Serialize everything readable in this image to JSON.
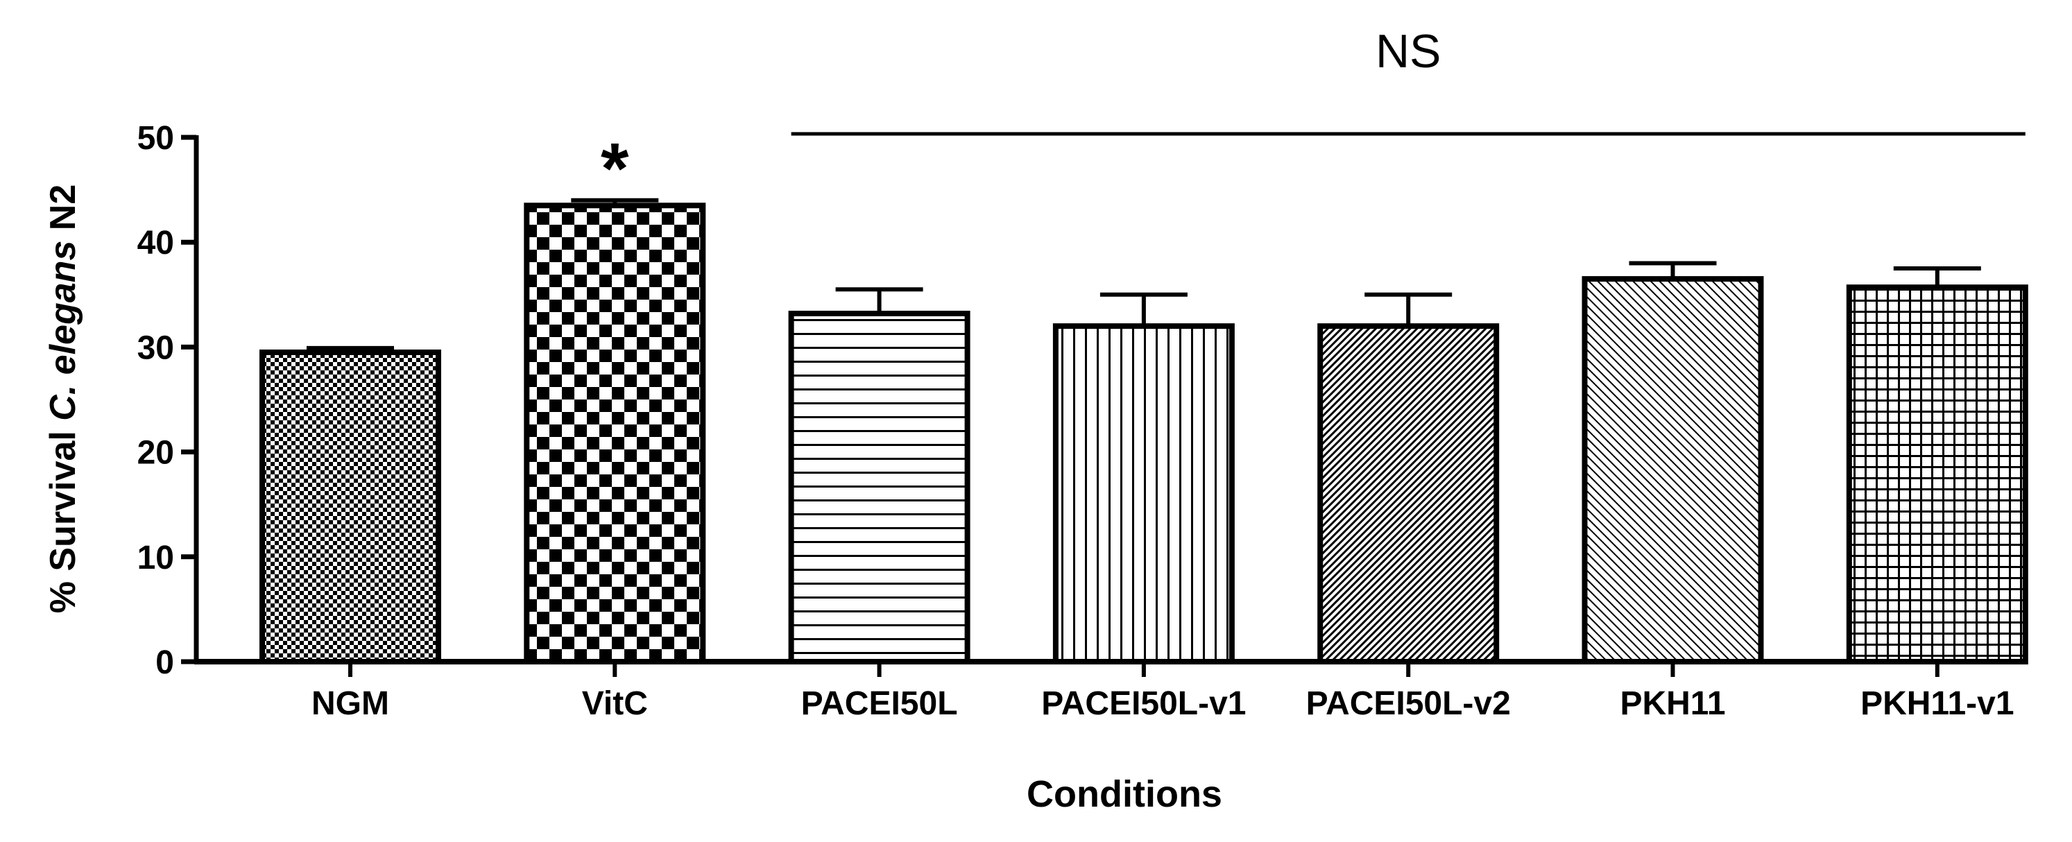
{
  "chart_data": {
    "type": "bar",
    "title": "",
    "xlabel": "Conditions",
    "ylabel_parts": [
      "% Survival ",
      "C. elegans",
      " N2"
    ],
    "ylim": [
      0,
      50
    ],
    "yticks": [
      0,
      10,
      20,
      30,
      40,
      50
    ],
    "categories": [
      "NGM",
      "VitC",
      "PACEI50L",
      "PACEI50L-v1",
      "PACEI50L-v2",
      "PKH11",
      "PKH11-v1"
    ],
    "values": [
      29.5,
      43.5,
      33.2,
      32.0,
      32.0,
      36.5,
      35.7
    ],
    "errors": [
      0.4,
      0.5,
      2.3,
      3.0,
      3.0,
      1.5,
      1.8
    ],
    "patterns": [
      "fine-checker",
      "coarse-checker",
      "horizontal-lines",
      "vertical-lines",
      "diagonal-dense",
      "diagonal-light",
      "grid"
    ],
    "annotations": {
      "significance_star": "*",
      "significance_star_category": "VitC",
      "ns_label": "NS",
      "ns_line_y": 50,
      "ns_span": [
        "PACEI50L",
        "PKH11-v1"
      ]
    },
    "colors": {
      "bar_stroke": "#000000",
      "pattern_ink": "#000000",
      "background": "#ffffff"
    }
  }
}
